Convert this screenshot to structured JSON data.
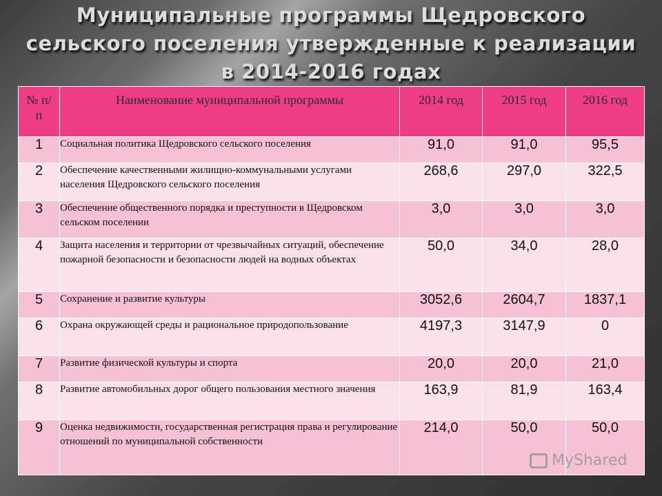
{
  "title": {
    "line1": "Муниципальные программы Щедровского",
    "line2": "сельского поселения утвержденные к реализации",
    "line3": "в 2014-2016 годах"
  },
  "table": {
    "headers": {
      "num": "№ п/п",
      "name": "Наименование муниципальной программы",
      "y2014": "2014 год",
      "y2015": "2015 год",
      "y2016": "2016 год"
    },
    "rows": [
      {
        "num": "1",
        "name": "Социальная политика Щедровского сельского поселения",
        "y2014": "91,0",
        "y2015": "91,0",
        "y2016": "95,5"
      },
      {
        "num": "2",
        "name": "Обеспечение качественными жилищно-коммунальными услугами населения Щедровского сельского поселения",
        "y2014": "268,6",
        "y2015": "297,0",
        "y2016": "322,5"
      },
      {
        "num": "3",
        "name": "Обеспечение общественного порядка и преступности в Щедровском сельском поселении",
        "y2014": "3,0",
        "y2015": "3,0",
        "y2016": "3,0"
      },
      {
        "num": "4",
        "name": "Защита населения и территории от чрезвычайных ситуаций, обеспечение пожарной безопасности и безопасности людей на водных объектах",
        "y2014": "50,0",
        "y2015": "34,0",
        "y2016": "28,0"
      },
      {
        "num": "5",
        "name": "Сохранение и развитие культуры",
        "y2014": "3052,6",
        "y2015": "2604,7",
        "y2016": "1837,1"
      },
      {
        "num": "6",
        "name": "Охрана окружающей среды и рациональное природопользование",
        "y2014": "4197,3",
        "y2015": "3147,9",
        "y2016": "0"
      },
      {
        "num": "7",
        "name": "Развитие физической культуры и спорта",
        "y2014": "20,0",
        "y2015": "20,0",
        "y2016": "21,0"
      },
      {
        "num": "8",
        "name": "Развитие автомобильных дорог общего пользования местного значения",
        "y2014": "163,9",
        "y2015": "81,9",
        "y2016": "163,4"
      },
      {
        "num": "9",
        "name": "Оценка недвижимости, государственная регистрация права и регулирование отношений по муниципальной собственности",
        "y2014": "214,0",
        "y2015": "50,0",
        "y2016": "50,0"
      }
    ]
  },
  "watermark": {
    "text": "MyShared",
    "icon": "myshared-logo-icon"
  },
  "colors": {
    "header_bg": "#ee3d84",
    "row_odd_bg": "#f7c1d5",
    "row_even_bg": "#fbe1ea"
  }
}
